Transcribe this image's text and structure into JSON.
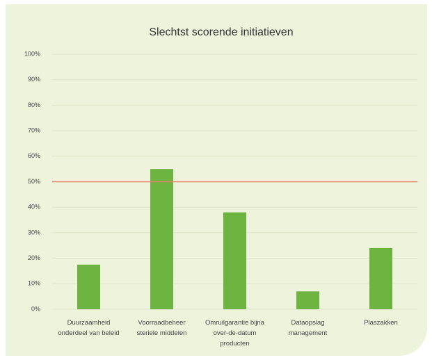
{
  "chart_data": {
    "type": "bar",
    "title": "Slechtst scorende initiatieven",
    "categories": [
      "Duurzaamheid onderdeel van beleid",
      "Voorraadbeheer steriele middelen",
      "Omruilgarantie bijna over-de-datum producten",
      "Dataopslag management",
      "Plaszakken"
    ],
    "values": [
      17.5,
      55,
      38,
      7,
      24
    ],
    "color": "#6db33f",
    "ylim": [
      0,
      100
    ],
    "yticks": [
      {
        "value": 0,
        "label": "0%"
      },
      {
        "value": 10,
        "label": "10%"
      },
      {
        "value": 20,
        "label": "20%"
      },
      {
        "value": 30,
        "label": "30%"
      },
      {
        "value": 40,
        "label": "40%"
      },
      {
        "value": 50,
        "label": "50%"
      },
      {
        "value": 60,
        "label": "60%"
      },
      {
        "value": 70,
        "label": "70%"
      },
      {
        "value": 80,
        "label": "80%"
      },
      {
        "value": 90,
        "label": "90%"
      },
      {
        "value": 100,
        "label": "100%"
      }
    ],
    "grid": true,
    "reference_line": {
      "value": 50,
      "color": "#e8826e"
    }
  }
}
